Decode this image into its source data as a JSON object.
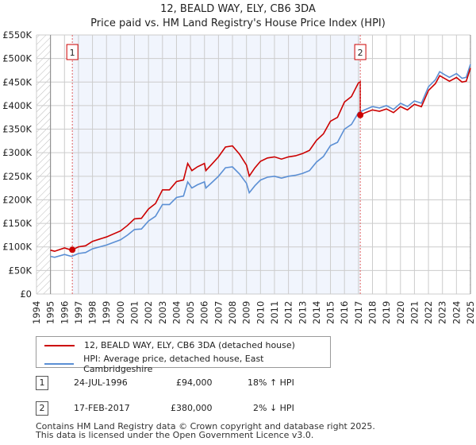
{
  "title": "12, BEALD WAY, ELY, CB6 3DA",
  "subtitle": "Price paid vs. HM Land Registry's House Price Index (HPI)",
  "chart_data": {
    "type": "line",
    "title": "12, BEALD WAY, ELY, CB6 3DA",
    "subtitle": "Price paid vs. HM Land Registry's House Price Index (HPI)",
    "xlim": [
      1994,
      2025
    ],
    "ylim": [
      0,
      550000
    ],
    "x_ticks": [
      "1994",
      "1995",
      "1996",
      "1997",
      "1998",
      "1999",
      "2000",
      "2001",
      "2002",
      "2003",
      "2004",
      "2005",
      "2006",
      "2007",
      "2008",
      "2009",
      "2010",
      "2011",
      "2012",
      "2013",
      "2014",
      "2015",
      "2016",
      "2017",
      "2018",
      "2019",
      "2020",
      "2021",
      "2022",
      "2023",
      "2024",
      "2025"
    ],
    "y_ticks": [
      "£0",
      "£50K",
      "£100K",
      "£150K",
      "£200K",
      "£250K",
      "£300K",
      "£350K",
      "£400K",
      "£450K",
      "£500K",
      "£550K"
    ],
    "grid": true,
    "hpi": {
      "name": "HPI: Average price, detached house, East Cambridgeshire",
      "color": "#5b8fd4",
      "x": [
        1995,
        1995.3,
        1996,
        1996.5,
        1997,
        1997.5,
        1998,
        1999,
        2000,
        2000.5,
        2001,
        2001.5,
        2002,
        2002.5,
        2003,
        2003.5,
        2004,
        2004.5,
        2004.8,
        2005.1,
        2005.5,
        2006,
        2006.1,
        2006.5,
        2007,
        2007.5,
        2008,
        2008.5,
        2009,
        2009.2,
        2009.6,
        2010,
        2010.5,
        2011,
        2011.5,
        2012,
        2012.5,
        2013,
        2013.5,
        2014,
        2014.5,
        2015,
        2015.5,
        2016,
        2016.5,
        2017,
        2017.5,
        2018,
        2018.5,
        2019,
        2019.5,
        2020,
        2020.5,
        2021,
        2021.5,
        2022,
        2022.5,
        2022.8,
        2023.2,
        2023.5,
        2024,
        2024.4,
        2024.7,
        2025
      ],
      "y": [
        80000,
        78000,
        84000,
        80000,
        86000,
        88000,
        96000,
        104000,
        115000,
        125000,
        137000,
        138000,
        155000,
        165000,
        190000,
        190000,
        205000,
        208000,
        238000,
        225000,
        232000,
        238000,
        225000,
        236000,
        250000,
        268000,
        270000,
        255000,
        235000,
        215000,
        230000,
        242000,
        248000,
        250000,
        246000,
        250000,
        252000,
        256000,
        262000,
        280000,
        292000,
        315000,
        322000,
        350000,
        360000,
        385000,
        392000,
        398000,
        395000,
        400000,
        392000,
        405000,
        398000,
        410000,
        405000,
        440000,
        455000,
        472000,
        465000,
        460000,
        468000,
        458000,
        460000,
        488000
      ]
    },
    "price_paid": {
      "name": "12, BEALD WAY, ELY, CB6 3DA (detached house)",
      "color": "#cc0000"
    },
    "sales": [
      {
        "label": "1",
        "x": 1996.56,
        "price": 94000,
        "date": "24-JUL-1996",
        "price_text": "£94,000",
        "delta": "18% ↑ HPI"
      },
      {
        "label": "2",
        "x": 2017.13,
        "price": 380000,
        "date": "17-FEB-2017",
        "price_text": "£380,000",
        "delta": "2% ↓ HPI"
      }
    ]
  },
  "legend": {
    "red": "12, BEALD WAY, ELY, CB6 3DA (detached house)",
    "blue": "HPI: Average price, detached house, East Cambridgeshire"
  },
  "footer": {
    "line1": "Contains HM Land Registry data © Crown copyright and database right 2025.",
    "line2": "This data is licensed under the Open Government Licence v3.0."
  }
}
